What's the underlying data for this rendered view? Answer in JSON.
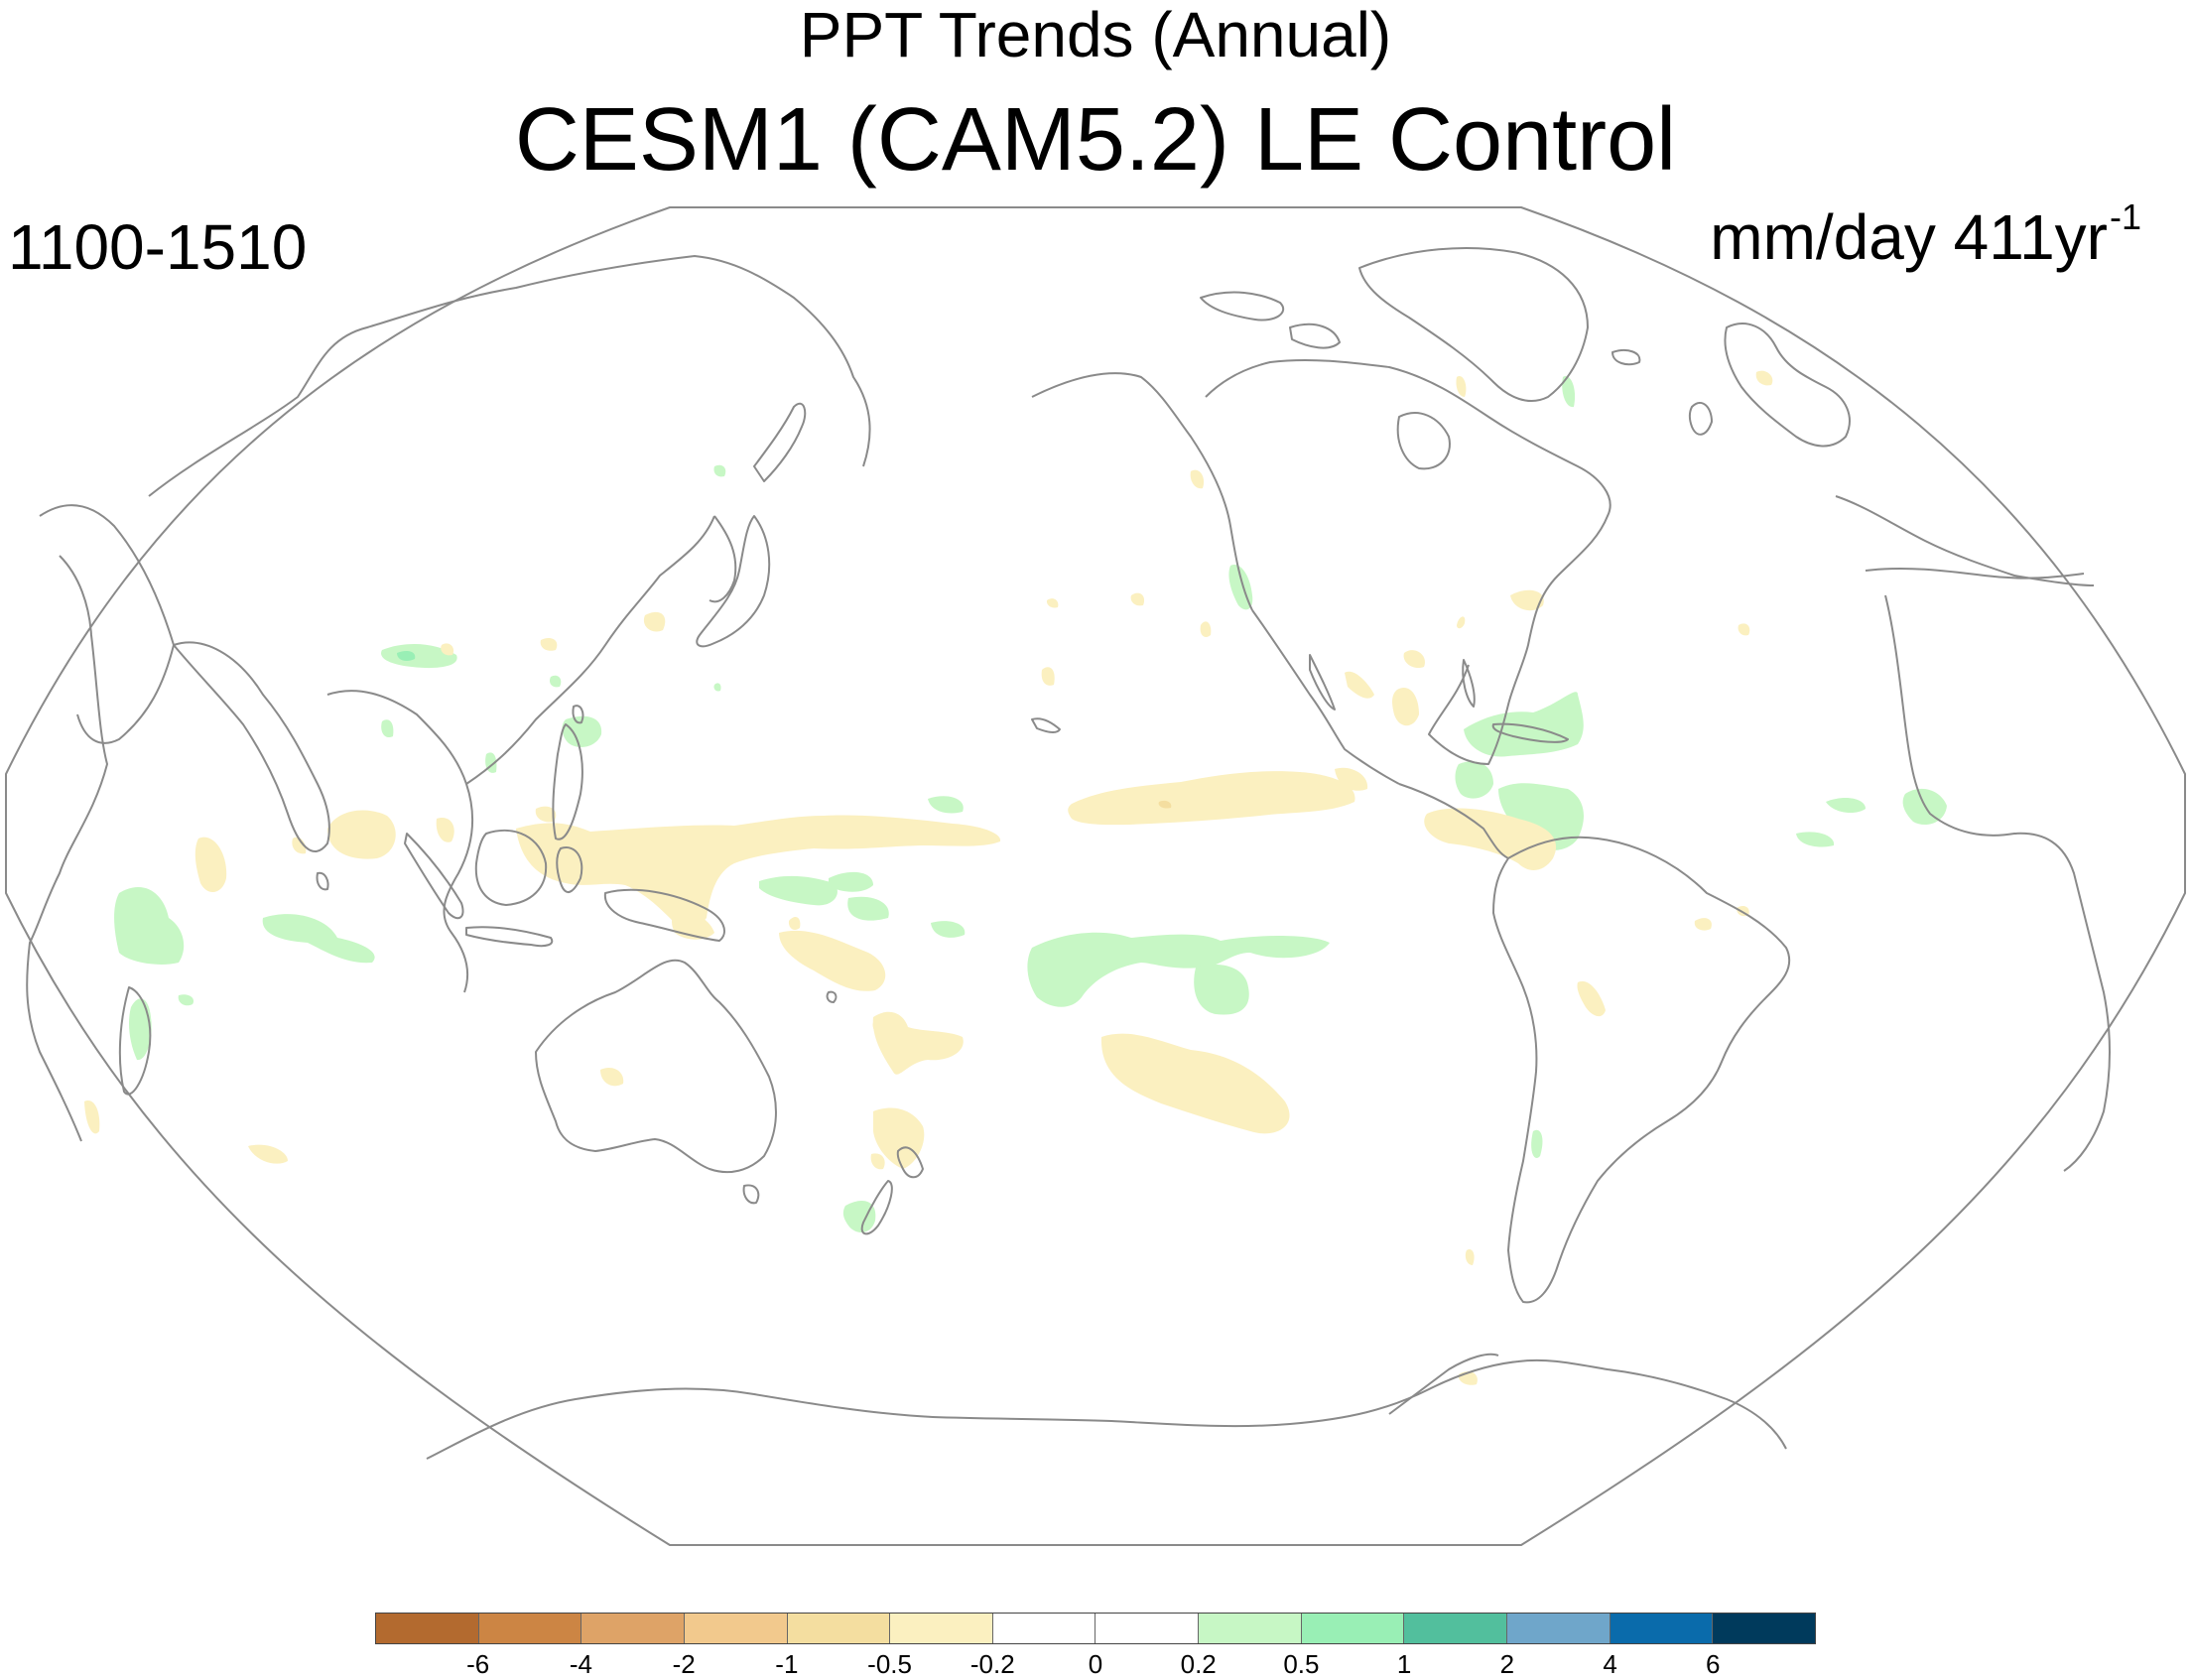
{
  "header": {
    "title_line1": "PPT Trends (Annual)",
    "title_line2": "CESM1 (CAM5.2) LE Control",
    "period": "1100-1510",
    "units_main": "mm/day 411yr",
    "units_exponent": "-1"
  },
  "map": {
    "projection": "robinson",
    "coastline_color": "#8a8a8a",
    "frame_color": "#8a8a8a",
    "positive_colors": [
      "#c7f7c5",
      "#99efb5"
    ],
    "negative_colors": [
      "#fbf0c0",
      "#f4dea0"
    ]
  },
  "colorbar": {
    "colors": [
      "#b36a2f",
      "#cc8544",
      "#dea367",
      "#f2c98d",
      "#f4dea0",
      "#fbf0c0",
      "#ffffff",
      "#ffffff",
      "#c7f7c5",
      "#99efb5",
      "#52bf9d",
      "#6fa6ca",
      "#0a6bab",
      "#003a5c"
    ],
    "tick_labels": [
      "-6",
      "-4",
      "-2",
      "-1",
      "-0.5",
      "-0.2",
      "0",
      "0.2",
      "0.5",
      "1",
      "2",
      "4",
      "6"
    ]
  }
}
